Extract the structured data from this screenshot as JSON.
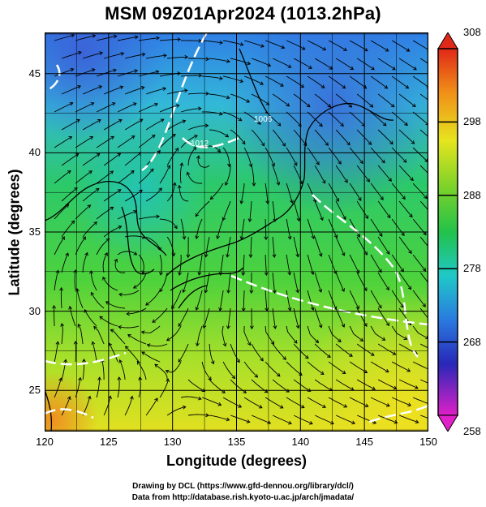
{
  "title": "MSM 09Z01Apr2024 (1013.2hPa)",
  "x_axis": {
    "label": "Longitude (degrees)",
    "ticks": [
      "120",
      "125",
      "130",
      "135",
      "140",
      "145",
      "150"
    ],
    "range": [
      120,
      150
    ]
  },
  "y_axis": {
    "label": "Latitude  (degrees)",
    "ticks": [
      "25",
      "30",
      "35",
      "40",
      "45"
    ],
    "range": [
      22.4,
      47.6
    ]
  },
  "colorbar": {
    "ticks": [
      "308",
      "298",
      "288",
      "278",
      "268",
      "258"
    ],
    "range": [
      258,
      308
    ]
  },
  "map_labels": {
    "contour_a": "1012",
    "contour_b": "1006"
  },
  "credits": {
    "line1": "Drawing by DCL (https://www.gfd-dennou.org/library/dcl/)",
    "line2": "Data from http://database.rish.kyoto-u.ac.jp/arch/jmadata/"
  },
  "colors": {
    "cold": "#3a6bdc",
    "cool": "#22c2c8",
    "mid": "#2dc860",
    "warm": "#f0e020",
    "hot": "#e84020"
  }
}
